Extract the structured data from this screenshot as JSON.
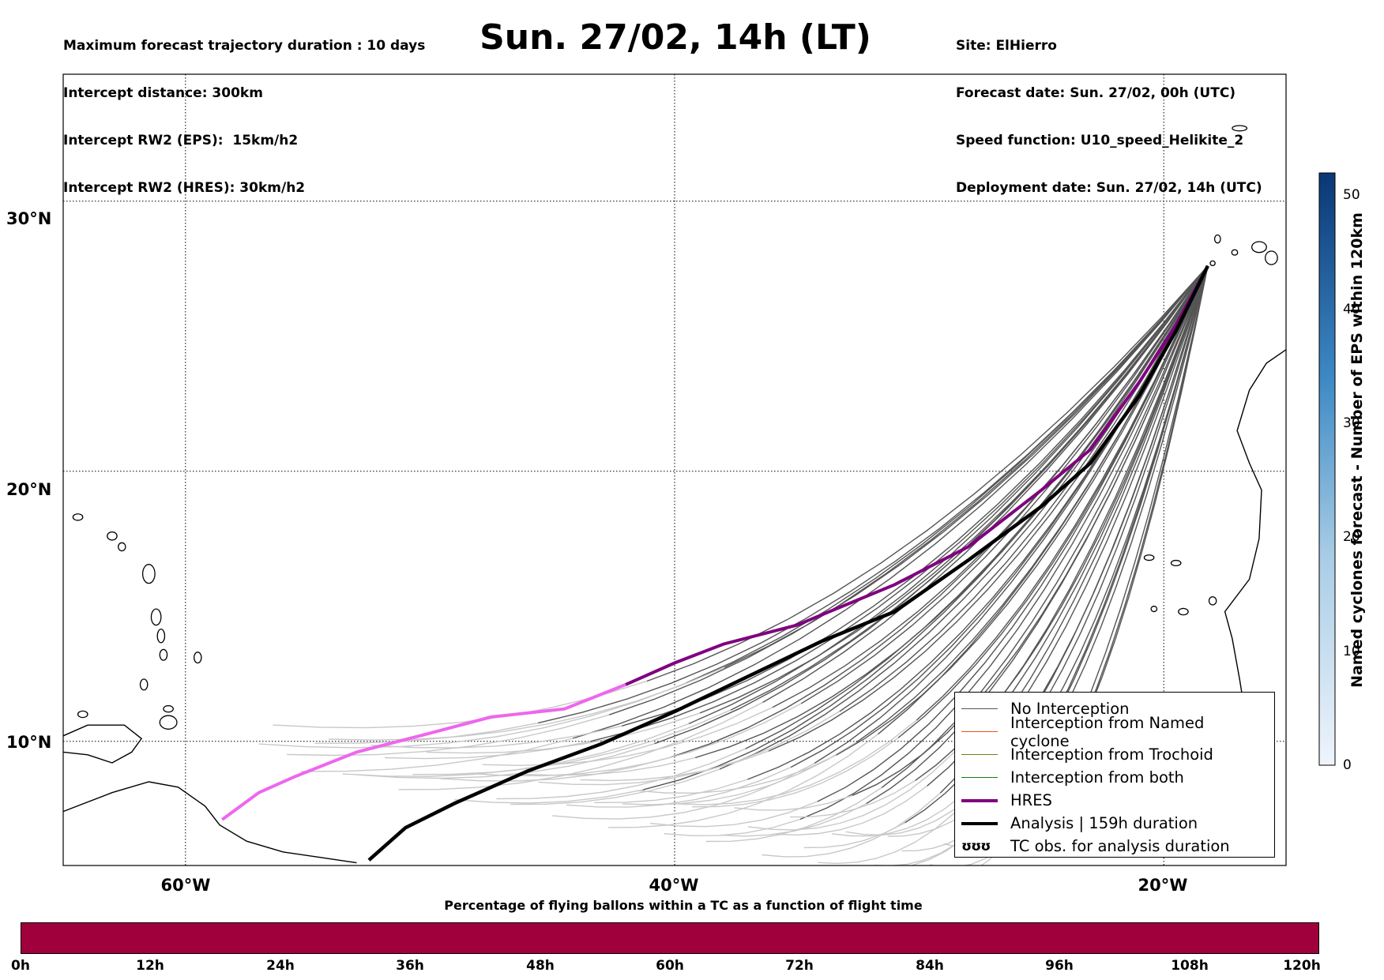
{
  "header": {
    "left_lines": [
      "Maximum forecast trajectory duration : 10 days",
      "Intercept distance: 300km",
      "Intercept RW2 (EPS):  15km/h2",
      "Intercept RW2 (HRES): 30km/h2"
    ],
    "title": "Sun. 27/02, 14h (LT)",
    "right_lines": [
      "Site: ElHierro",
      "Forecast date: Sun. 27/02, 00h (UTC)",
      "Speed function: U10_speed_Helikite_2",
      "Deployment date: Sun. 27/02, 14h (UTC)"
    ]
  },
  "map": {
    "lat_labels": [
      "30°N",
      "20°N",
      "10°N"
    ],
    "lon_labels": [
      "60°W",
      "40°W",
      "20°W"
    ],
    "extent": {
      "lon_min": -65,
      "lon_max": -15,
      "lat_min": 5.4,
      "lat_max": 34.7
    },
    "grid_lons": [
      -60,
      -40,
      -20
    ],
    "grid_lats": [
      10,
      20,
      30
    ],
    "colors": {
      "no_interception": "#555555",
      "faded": "#c8c8c8",
      "hres": "#800080",
      "hres_faded": "#ee66ee",
      "analysis": "#000000",
      "named_cyclone": "#e8541a",
      "trochoid": "#7a7a20",
      "both": "#1a7a1a"
    }
  },
  "legend": {
    "items": [
      {
        "label": "No Interception",
        "color": "#555555",
        "width": 1.5
      },
      {
        "label": "Interception from Named cyclone",
        "color": "#e8541a",
        "width": 1.5
      },
      {
        "label": "Interception from Trochoid",
        "color": "#7a7a20",
        "width": 1.5
      },
      {
        "label": "Interception from both",
        "color": "#1a7a1a",
        "width": 1.5
      },
      {
        "label": "HRES",
        "color": "#800080",
        "width": 4
      },
      {
        "label": "Analysis | 159h duration",
        "color": "#000000",
        "width": 4
      }
    ],
    "tc_obs": {
      "glyph": "ʊʊʊ",
      "label": "TC obs. for analysis duration"
    }
  },
  "colorbar": {
    "title": "Named cyclones forecast - Number of EPS within 120km",
    "ticks": [
      "50",
      "40",
      "30",
      "20",
      "10",
      "0"
    ],
    "range": [
      0,
      52
    ]
  },
  "timebar": {
    "title": "Percentage of flying ballons within a TC as a function of flight time",
    "ticks": [
      "0h",
      "12h",
      "24h",
      "36h",
      "48h",
      "60h",
      "72h",
      "84h",
      "96h",
      "108h",
      "120h"
    ]
  },
  "chart_data": {
    "type": "line",
    "title": "Sun. 27/02, 14h (LT)",
    "series": [
      {
        "name": "HRES",
        "points": [
          [
            -18.2,
            27.6
          ],
          [
            -19.5,
            25.4
          ],
          [
            -21,
            23.3
          ],
          [
            -23,
            20.8
          ],
          [
            -25,
            19.3
          ],
          [
            -28,
            17.2
          ],
          [
            -31,
            15.8
          ],
          [
            -35,
            14.3
          ],
          [
            -38,
            13.6
          ],
          [
            -40,
            12.9
          ],
          [
            -42,
            12.1
          ],
          [
            -44.5,
            11.2
          ],
          [
            -47.5,
            10.9
          ],
          [
            -50,
            10.3
          ],
          [
            -53,
            9.6
          ],
          [
            -55.5,
            8.7
          ],
          [
            -57,
            8.1
          ],
          [
            -58.5,
            7.1
          ]
        ]
      },
      {
        "name": "Analysis | 159h duration",
        "points": [
          [
            -18.2,
            27.6
          ],
          [
            -19.5,
            25.2
          ],
          [
            -21,
            22.8
          ],
          [
            -23,
            20.3
          ],
          [
            -25,
            18.7
          ],
          [
            -28,
            16.7
          ],
          [
            -31,
            14.8
          ],
          [
            -34,
            13.7
          ],
          [
            -37,
            12.4
          ],
          [
            -40,
            11.1
          ],
          [
            -43,
            9.9
          ],
          [
            -46,
            8.9
          ],
          [
            -49,
            7.7
          ],
          [
            -51,
            6.8
          ],
          [
            -52.5,
            5.6
          ]
        ]
      }
    ]
  }
}
